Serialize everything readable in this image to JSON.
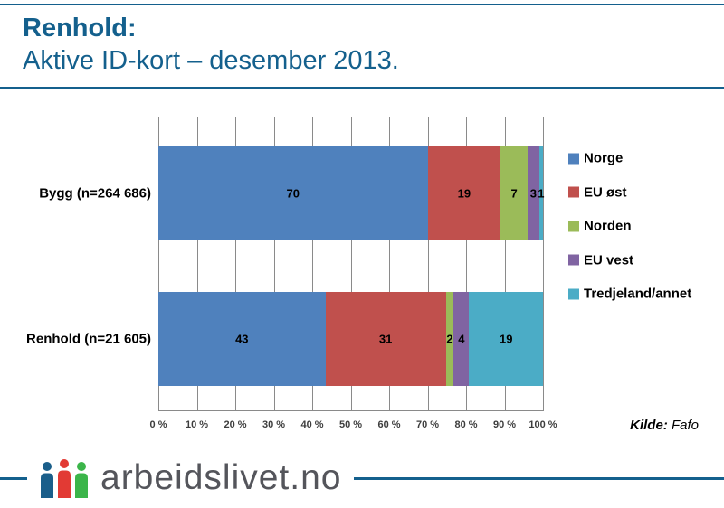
{
  "header": {
    "title": "Renhold:",
    "subtitle": "Aktive ID-kort – desember 2013."
  },
  "chart_data": {
    "type": "bar",
    "variant": "horizontal-stacked-100",
    "categories": [
      "Bygg (n=264 686)",
      "Renhold (n=21 605)"
    ],
    "series": [
      {
        "name": "Norge",
        "color": "#4F81BD",
        "values": [
          70,
          43
        ]
      },
      {
        "name": "EU øst",
        "color": "#C0504D",
        "values": [
          19,
          31
        ]
      },
      {
        "name": "Norden",
        "color": "#9BBB59",
        "values": [
          7,
          2
        ]
      },
      {
        "name": "EU vest",
        "color": "#8064A2",
        "values": [
          3,
          4
        ]
      },
      {
        "name": "Tredjeland/annet",
        "color": "#4BACC6",
        "values": [
          1,
          19
        ]
      }
    ],
    "xlim": [
      0,
      100
    ],
    "xticks": [
      "0 %",
      "10 %",
      "20 %",
      "30 %",
      "40 %",
      "50 %",
      "60 %",
      "70 %",
      "80 %",
      "90 %",
      "100 %"
    ],
    "grid": true,
    "legend_position": "right",
    "value_labels": true
  },
  "source": {
    "label_bold": "Kilde:",
    "label_rest": " Fafo"
  },
  "footer": {
    "logo_text": "arbeidslivet.no",
    "people_icon_colors": [
      "#1A5E8A",
      "#E23A34",
      "#3BB54A"
    ]
  },
  "colors": {
    "brand": "#14608D",
    "grid": "#8a8a8a",
    "axis_text": "#3d3d3d",
    "logo_text": "#54555B"
  }
}
